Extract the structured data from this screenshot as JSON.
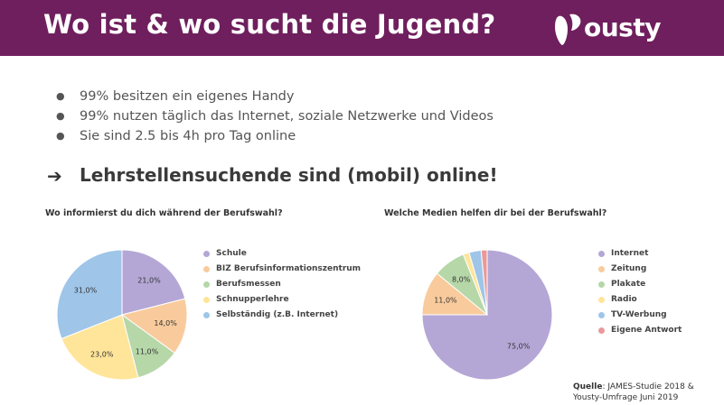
{
  "header": {
    "title": "Wo ist & wo sucht die Jugend?",
    "logo_text": "ousty",
    "background": "#6f1f5d"
  },
  "bullets": [
    "99% besitzen ein eigenes Handy",
    "99% nutzen täglich das Internet, soziale Netzwerke und Videos",
    "Sie sind 2.5 bis 4h pro Tag online"
  ],
  "headline": {
    "arrow": "➔",
    "text": "Lehrstellensuchende sind (mobil) online!"
  },
  "source": {
    "label": "Quelle",
    "text": ": JAMES-Studie 2018 &",
    "text2": "Yousty-Umfrage Juni 2019"
  },
  "chart_data": [
    {
      "type": "pie",
      "title": "Wo informierst du dich während der Berufswahl?",
      "legend_position": "right",
      "categories": [
        "Schule",
        "BIZ Berufsinformationszentrum",
        "Berufsmessen",
        "Schnupperlehre",
        "Selbständig (z.B. Internet)"
      ],
      "values": [
        21.0,
        14.0,
        11.0,
        23.0,
        31.0
      ],
      "labels": [
        "21,0%",
        "14,0%",
        "11,0%",
        "23,0%",
        "31,0%"
      ],
      "colors": [
        "#b4a7d6",
        "#f9cb9c",
        "#b6d7a8",
        "#ffe599",
        "#9fc5e8"
      ]
    },
    {
      "type": "pie",
      "title": "Welche Medien helfen dir bei der Berufswahl?",
      "legend_position": "right",
      "categories": [
        "Internet",
        "Zeitung",
        "Plakate",
        "Radio",
        "TV-Werbung",
        "Eigene Antwort"
      ],
      "values": [
        75.0,
        11.0,
        8.0,
        1.5,
        3.0,
        1.5
      ],
      "labels": [
        "75,0%",
        "11,0%",
        "8,0%",
        "",
        "",
        ""
      ],
      "colors": [
        "#b4a7d6",
        "#f9cb9c",
        "#b6d7a8",
        "#ffe599",
        "#9fc5e8",
        "#ea9999"
      ]
    }
  ]
}
